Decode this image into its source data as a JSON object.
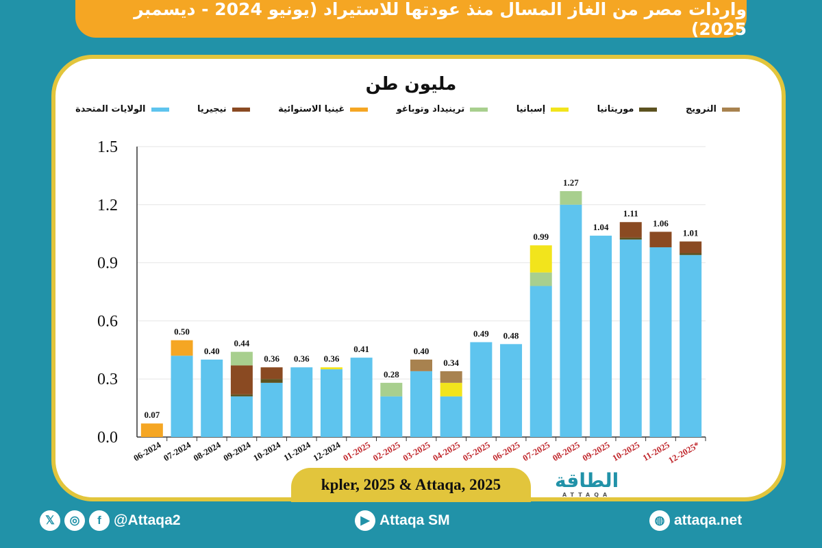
{
  "header": {
    "title": "واردات مصر من الغاز المسال منذ عودتها للاستيراد (يونيو 2024 - ديسمبر 2025)"
  },
  "footer": {
    "source": "kpler, 2025 & Attaqa, 2025",
    "logo_text": "الطاقة",
    "logo_sub": "ATTAQA",
    "social_handle": "@Attaqa2",
    "youtube": "Attaqa SM",
    "website": "attaqa.net",
    "icons": [
      "x-icon",
      "instagram-icon",
      "facebook-icon",
      "youtube-icon",
      "globe-icon"
    ]
  },
  "chart_data": {
    "type": "bar",
    "stacked": true,
    "ylabel": "مليون طن",
    "ylim": [
      0,
      1.5
    ],
    "yticks": [
      "0.0",
      "0.3",
      "0.6",
      "0.9",
      "1.2",
      "1.5"
    ],
    "grid": true,
    "legend_position": "top",
    "categories": [
      "06-2024",
      "07-2024",
      "08-2024",
      "09-2024",
      "10-2024",
      "11-2024",
      "12-2024",
      "01-2025",
      "02-2025",
      "03-2025",
      "04-2025",
      "05-2025",
      "06-2025",
      "07-2025",
      "08-2025",
      "09-2025",
      "10-2025",
      "11-2025",
      "12-2025*"
    ],
    "category_colors": {
      "2024": "#111111",
      "2025": "#c0282d"
    },
    "totals": [
      "0.07",
      "0.50",
      "0.40",
      "0.44",
      "0.36",
      "0.36",
      "0.36",
      "0.41",
      "0.28",
      "0.40",
      "0.34",
      "0.49",
      "0.48",
      "0.99",
      "1.27",
      "1.04",
      "1.11",
      "1.06",
      "1.01"
    ],
    "series": [
      {
        "name": "الولايات المتحدة",
        "color": "#5ec4ee",
        "values": [
          0,
          0.42,
          0.4,
          0.21,
          0.28,
          0.36,
          0.35,
          0.41,
          0.21,
          0.34,
          0.21,
          0.49,
          0.48,
          0.78,
          1.2,
          1.04,
          1.02,
          0.98,
          0.94
        ]
      },
      {
        "name": "موريتانيا",
        "color": "#5c5220",
        "values": [
          0,
          0,
          0,
          0.01,
          0.02,
          0,
          0,
          0,
          0,
          0,
          0,
          0,
          0,
          0,
          0,
          0,
          0.01,
          0,
          0.01
        ]
      },
      {
        "name": "نيجيريا",
        "color": "#8a4a22",
        "values": [
          0,
          0,
          0,
          0.15,
          0.06,
          0,
          0,
          0,
          0,
          0,
          0,
          0,
          0,
          0,
          0,
          0,
          0.08,
          0.08,
          0.06
        ]
      },
      {
        "name": "غينيا الاستوائية",
        "color": "#f5a623",
        "values": [
          0.07,
          0.08,
          0,
          0,
          0,
          0,
          0,
          0,
          0,
          0,
          0,
          0,
          0,
          0,
          0,
          0,
          0,
          0,
          0
        ]
      },
      {
        "name": "ترينيداد وتوباغو",
        "color": "#a8cf8e",
        "values": [
          0,
          0,
          0,
          0.07,
          0,
          0,
          0,
          0,
          0.07,
          0,
          0,
          0,
          0,
          0.07,
          0.07,
          0,
          0,
          0,
          0
        ]
      },
      {
        "name": "إسبانيا",
        "color": "#f2e41c",
        "values": [
          0,
          0,
          0,
          0,
          0,
          0,
          0.01,
          0,
          0,
          0,
          0.07,
          0,
          0,
          0.14,
          0,
          0,
          0,
          0,
          0
        ]
      },
      {
        "name": "النرويج",
        "color": "#a8824f",
        "values": [
          0,
          0,
          0,
          0,
          0,
          0,
          0,
          0,
          0,
          0.06,
          0.06,
          0,
          0,
          0,
          0,
          0,
          0,
          0,
          0
        ]
      }
    ],
    "legend_order": [
      "الولايات المتحدة",
      "نيجيريا",
      "غينيا الاستوائية",
      "ترينيداد وتوباغو",
      "إسبانيا",
      "موريتانيا",
      "النرويج"
    ]
  }
}
